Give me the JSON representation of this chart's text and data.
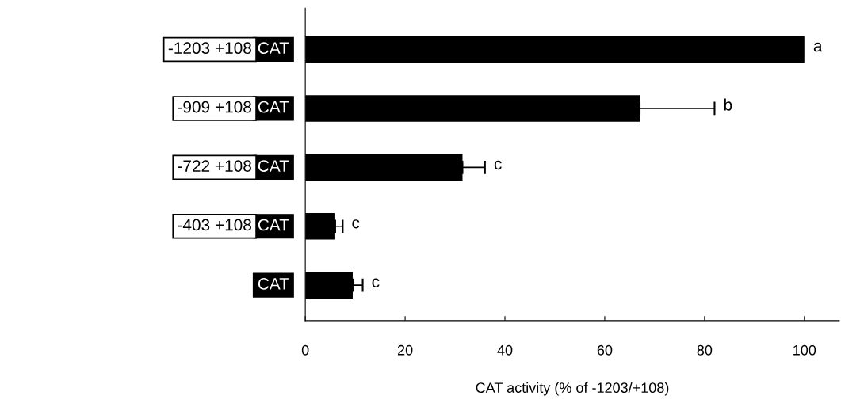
{
  "chart_data": {
    "type": "bar",
    "orientation": "horizontal",
    "categories": [
      "-1203 +108",
      "-909 +108",
      "-722 +108",
      "-403 +108",
      null
    ],
    "values": [
      100,
      67,
      31.5,
      6,
      9.5
    ],
    "errors": [
      null,
      15,
      4.5,
      1.5,
      2
    ],
    "color": "#000000",
    "xlim": [
      0,
      107
    ],
    "xticks": [
      0,
      20,
      40,
      60,
      80,
      100
    ],
    "xlabel": "CAT activity (% of -1203/+108)",
    "grid": false,
    "annotations": [
      "CAT",
      "CAT",
      "CAT",
      "CAT",
      "CAT",
      {
        "text": "a",
        "x": 100,
        "y": "-1203 +108"
      },
      {
        "text": "b",
        "x": 82,
        "y": "-909 +108"
      },
      {
        "text": "c",
        "x": 36,
        "y": "-722 +108"
      },
      {
        "text": "c",
        "x": 7.5,
        "y": "-403 +108"
      },
      {
        "text": "c",
        "x": 11.5
      }
    ]
  }
}
